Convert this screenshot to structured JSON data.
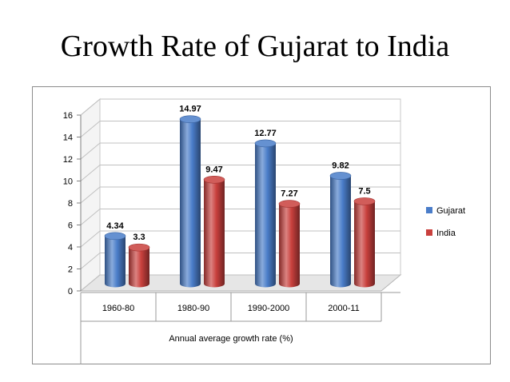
{
  "slide": {
    "title": "Growth Rate of Gujarat to India"
  },
  "chart_data": {
    "type": "bar",
    "title": "",
    "xlabel": "Annual average growth rate (%)",
    "ylabel": "",
    "ylim": [
      0,
      16
    ],
    "yticks": [
      0,
      2,
      4,
      6,
      8,
      10,
      12,
      14,
      16
    ],
    "categories": [
      "1960-80",
      "1980-90",
      "1990-2000",
      "2000-11"
    ],
    "series": [
      {
        "name": "Gujarat",
        "values": [
          4.34,
          14.97,
          12.77,
          9.82
        ],
        "labels": [
          "4.34",
          "14.97",
          "12.77",
          "9.82"
        ],
        "color": "#4a7dc9"
      },
      {
        "name": "India",
        "values": [
          3.3,
          9.47,
          7.27,
          7.5
        ],
        "labels": [
          "3.3",
          "9.47",
          "7.27",
          "7.5"
        ],
        "color": "#c9403d"
      }
    ],
    "grid": true,
    "legend": "right",
    "style": "3d-cylinder"
  }
}
